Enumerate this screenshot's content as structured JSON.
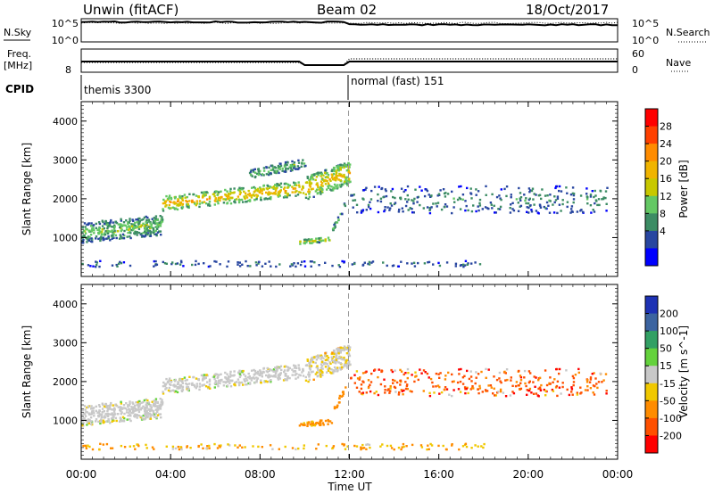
{
  "header": {
    "station": "Unwin (fitACF)",
    "beam": "Beam 02",
    "date": "18/Oct/2017"
  },
  "side_labels": {
    "nsky": "N.Sky",
    "nsearch": "N.Search",
    "freq_line1": "Freq.",
    "freq_line2": "[MHz]",
    "nave": "Nave",
    "cpid": "CPID"
  },
  "nsky_panel": {
    "left_ticks": [
      "10^5",
      "10^0"
    ],
    "right_ticks": [
      "10^5",
      "10^0"
    ]
  },
  "freq_panel": {
    "left_ticks": [
      "8"
    ],
    "right_ticks": [
      "60",
      "0"
    ]
  },
  "cpid_panel": {
    "modes": [
      "themis 3300",
      "normal (fast) 151"
    ]
  },
  "power_colorbar": {
    "label": "Power [dB]",
    "ticks": [
      "28",
      "24",
      "20",
      "16",
      "12",
      "8",
      "4"
    ],
    "colors": [
      "#ff0000",
      "#ff4000",
      "#ff8c00",
      "#f0b400",
      "#c8c800",
      "#64c864",
      "#3c8c64",
      "#2846a0",
      "#0000ff"
    ]
  },
  "velocity_colorbar": {
    "label": "Velocity [m s^-1]",
    "ticks": [
      "200",
      "100",
      "50",
      "15",
      "-15",
      "-50",
      "-100",
      "-200"
    ],
    "colors": [
      "#1e32b4",
      "#3c64a0",
      "#32a064",
      "#64d23c",
      "#c8c8c8",
      "#f0c800",
      "#ff8c00",
      "#ff5000",
      "#ff0000"
    ]
  },
  "chart_data": [
    {
      "type": "heatmap",
      "panel": "power",
      "ylabel": "Slant Range [km]",
      "xlabel": "Time UT",
      "x_ticks": [
        "00:00",
        "04:00",
        "08:00",
        "12:00",
        "16:00",
        "20:00",
        "00:00"
      ],
      "y_ticks": [
        "1000",
        "2000",
        "3000",
        "4000"
      ],
      "xlim_hours": [
        0,
        24
      ],
      "ylim_km": [
        0,
        4500
      ],
      "mode_change_hour": 12.0,
      "features": [
        {
          "start_hour": 0.0,
          "end_hour": 3.6,
          "range_start_km": 1150,
          "range_end_km": 1350,
          "range_width_km": 520,
          "power_db": 12
        },
        {
          "start_hour": 3.6,
          "end_hour": 9.9,
          "range_start_km": 1900,
          "range_end_km": 2300,
          "range_width_km": 380,
          "power_db": 20
        },
        {
          "start_hour": 10.0,
          "end_hour": 12.0,
          "range_start_km": 2300,
          "range_end_km": 2700,
          "range_width_km": 600,
          "power_db": 19
        },
        {
          "start_hour": 7.5,
          "end_hour": 10.0,
          "range_start_km": 2650,
          "range_end_km": 2950,
          "range_width_km": 250,
          "power_db": 11
        },
        {
          "start_hour": 9.7,
          "end_hour": 11.2,
          "range_start_km": 900,
          "range_end_km": 1000,
          "range_width_km": 120,
          "power_db": 17
        },
        {
          "start_hour": 11.2,
          "end_hour": 11.8,
          "range_start_km": 1200,
          "range_end_km": 1900,
          "range_width_km": 160,
          "power_db": 10
        },
        {
          "start_hour": 12.0,
          "end_hour": 23.5,
          "range_start_km": 2000,
          "range_end_km": 2000,
          "range_width_km": 700,
          "power_db": 7
        },
        {
          "start_hour": 0.0,
          "end_hour": 18.0,
          "range_start_km": 350,
          "range_end_km": 350,
          "range_width_km": 150,
          "power_db": 6
        }
      ]
    },
    {
      "type": "heatmap",
      "panel": "velocity",
      "ylabel": "Slant Range [km]",
      "xlabel": "Time UT",
      "x_ticks": [
        "00:00",
        "04:00",
        "08:00",
        "12:00",
        "16:00",
        "20:00",
        "00:00"
      ],
      "y_ticks": [
        "1000",
        "2000",
        "3000",
        "4000"
      ],
      "xlim_hours": [
        0,
        24
      ],
      "ylim_km": [
        0,
        4500
      ],
      "mode_change_hour": 12.0,
      "features": [
        {
          "start_hour": 0.0,
          "end_hour": 3.6,
          "range_start_km": 1150,
          "range_end_km": 1350,
          "range_width_km": 520,
          "velocity_ms": 0
        },
        {
          "start_hour": 3.6,
          "end_hour": 9.9,
          "range_start_km": 1900,
          "range_end_km": 2300,
          "range_width_km": 380,
          "velocity_ms": 0
        },
        {
          "start_hour": 10.0,
          "end_hour": 12.0,
          "range_start_km": 2300,
          "range_end_km": 2700,
          "range_width_km": 600,
          "velocity_ms": -10
        },
        {
          "start_hour": 9.7,
          "end_hour": 11.2,
          "range_start_km": 900,
          "range_end_km": 1000,
          "range_width_km": 120,
          "velocity_ms": -40
        },
        {
          "start_hour": 11.2,
          "end_hour": 11.8,
          "range_start_km": 1200,
          "range_end_km": 1900,
          "range_width_km": 160,
          "velocity_ms": -60
        },
        {
          "start_hour": 12.0,
          "end_hour": 23.5,
          "range_start_km": 2000,
          "range_end_km": 2000,
          "range_width_km": 700,
          "velocity_ms": -100
        },
        {
          "start_hour": 0.0,
          "end_hour": 18.0,
          "range_start_km": 350,
          "range_end_km": 350,
          "range_width_km": 150,
          "velocity_ms": -30
        }
      ]
    }
  ]
}
